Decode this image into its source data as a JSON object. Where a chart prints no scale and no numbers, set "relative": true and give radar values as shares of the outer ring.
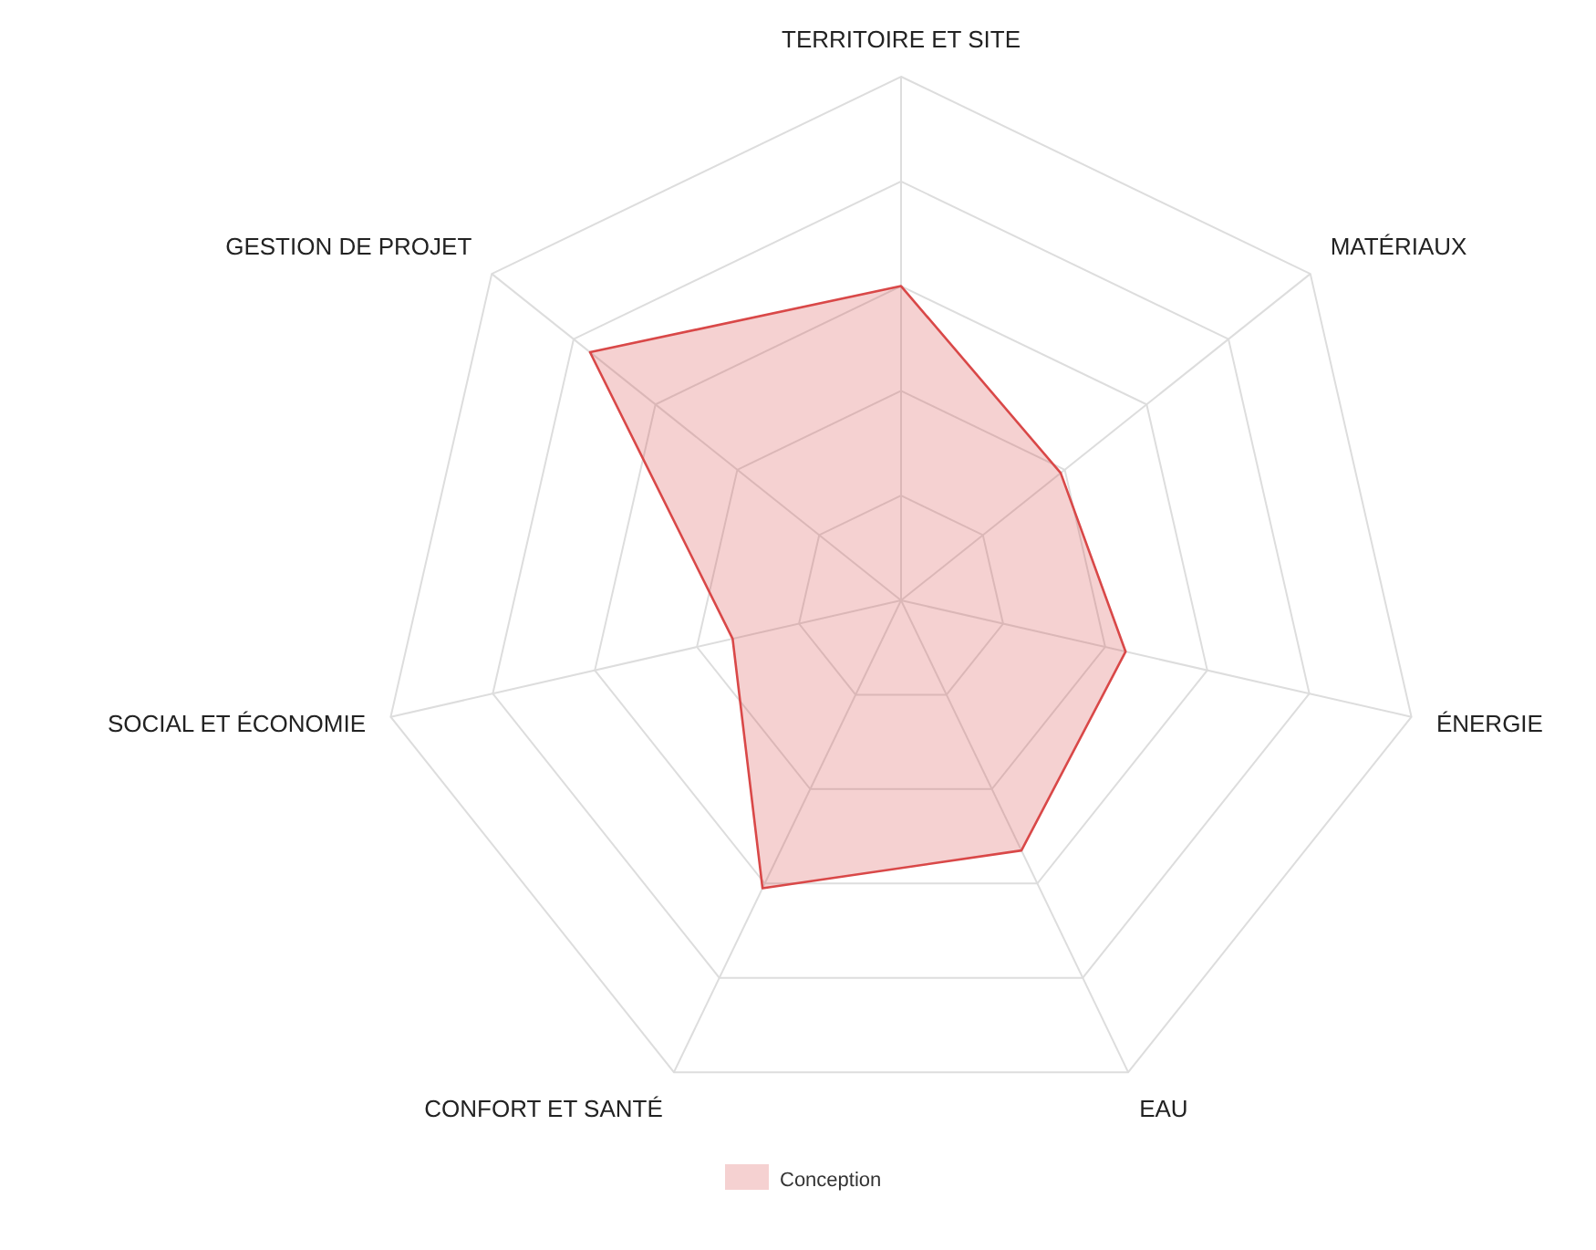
{
  "chart_data": {
    "type": "radar",
    "relative": true,
    "grid": true,
    "legend": "bottom",
    "categories": [
      "TERRITOIRE ET SITE",
      "MATÉRIAUX",
      "ÉNERGIE",
      "EAU",
      "CONFORT ET SANTÉ",
      "SOCIAL ET ÉCONOMIE",
      "GESTION DE PROJET"
    ],
    "series": [
      {
        "name": "Conception",
        "color": "#d94848",
        "values": [
          0.6,
          0.39,
          0.44,
          0.53,
          0.61,
          0.33,
          0.76
        ]
      }
    ]
  }
}
